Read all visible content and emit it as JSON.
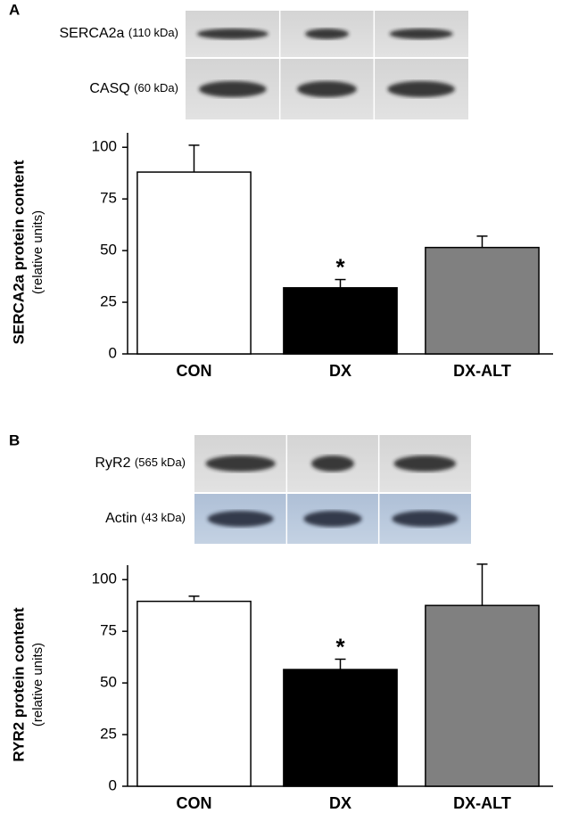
{
  "chart_data": [
    {
      "type": "bar",
      "panel": "A",
      "blots": [
        {
          "name": "SERCA2a",
          "size": "(110 kDa)"
        },
        {
          "name": "CASQ",
          "size": "(60 kDa)"
        }
      ],
      "y_label": "SERCA2a protein content",
      "y_sublabel": "(relative units)",
      "categories": [
        "CON",
        "DX",
        "DX-ALT"
      ],
      "values": [
        88,
        32,
        51.5
      ],
      "errors": [
        13,
        4,
        5.5
      ],
      "colors": [
        "#ffffff",
        "#000000",
        "#808080"
      ],
      "annotations": [
        {
          "text": "*",
          "category": "DX"
        }
      ],
      "ylim": [
        0,
        107
      ],
      "yticks": [
        0,
        25,
        50,
        75,
        100
      ]
    },
    {
      "type": "bar",
      "panel": "B",
      "blots": [
        {
          "name": "RyR2",
          "size": "(565 kDa)"
        },
        {
          "name": "Actin",
          "size": "(43 kDa)"
        }
      ],
      "y_label": "RYR2 protein content",
      "y_sublabel": "(relative units)",
      "categories": [
        "CON",
        "DX",
        "DX-ALT"
      ],
      "values": [
        89.5,
        56.5,
        87.5
      ],
      "errors": [
        2.5,
        5,
        20
      ],
      "colors": [
        "#ffffff",
        "#000000",
        "#808080"
      ],
      "annotations": [
        {
          "text": "*",
          "category": "DX"
        }
      ],
      "ylim": [
        0,
        107
      ],
      "yticks": [
        0,
        25,
        50,
        75,
        100
      ]
    }
  ]
}
